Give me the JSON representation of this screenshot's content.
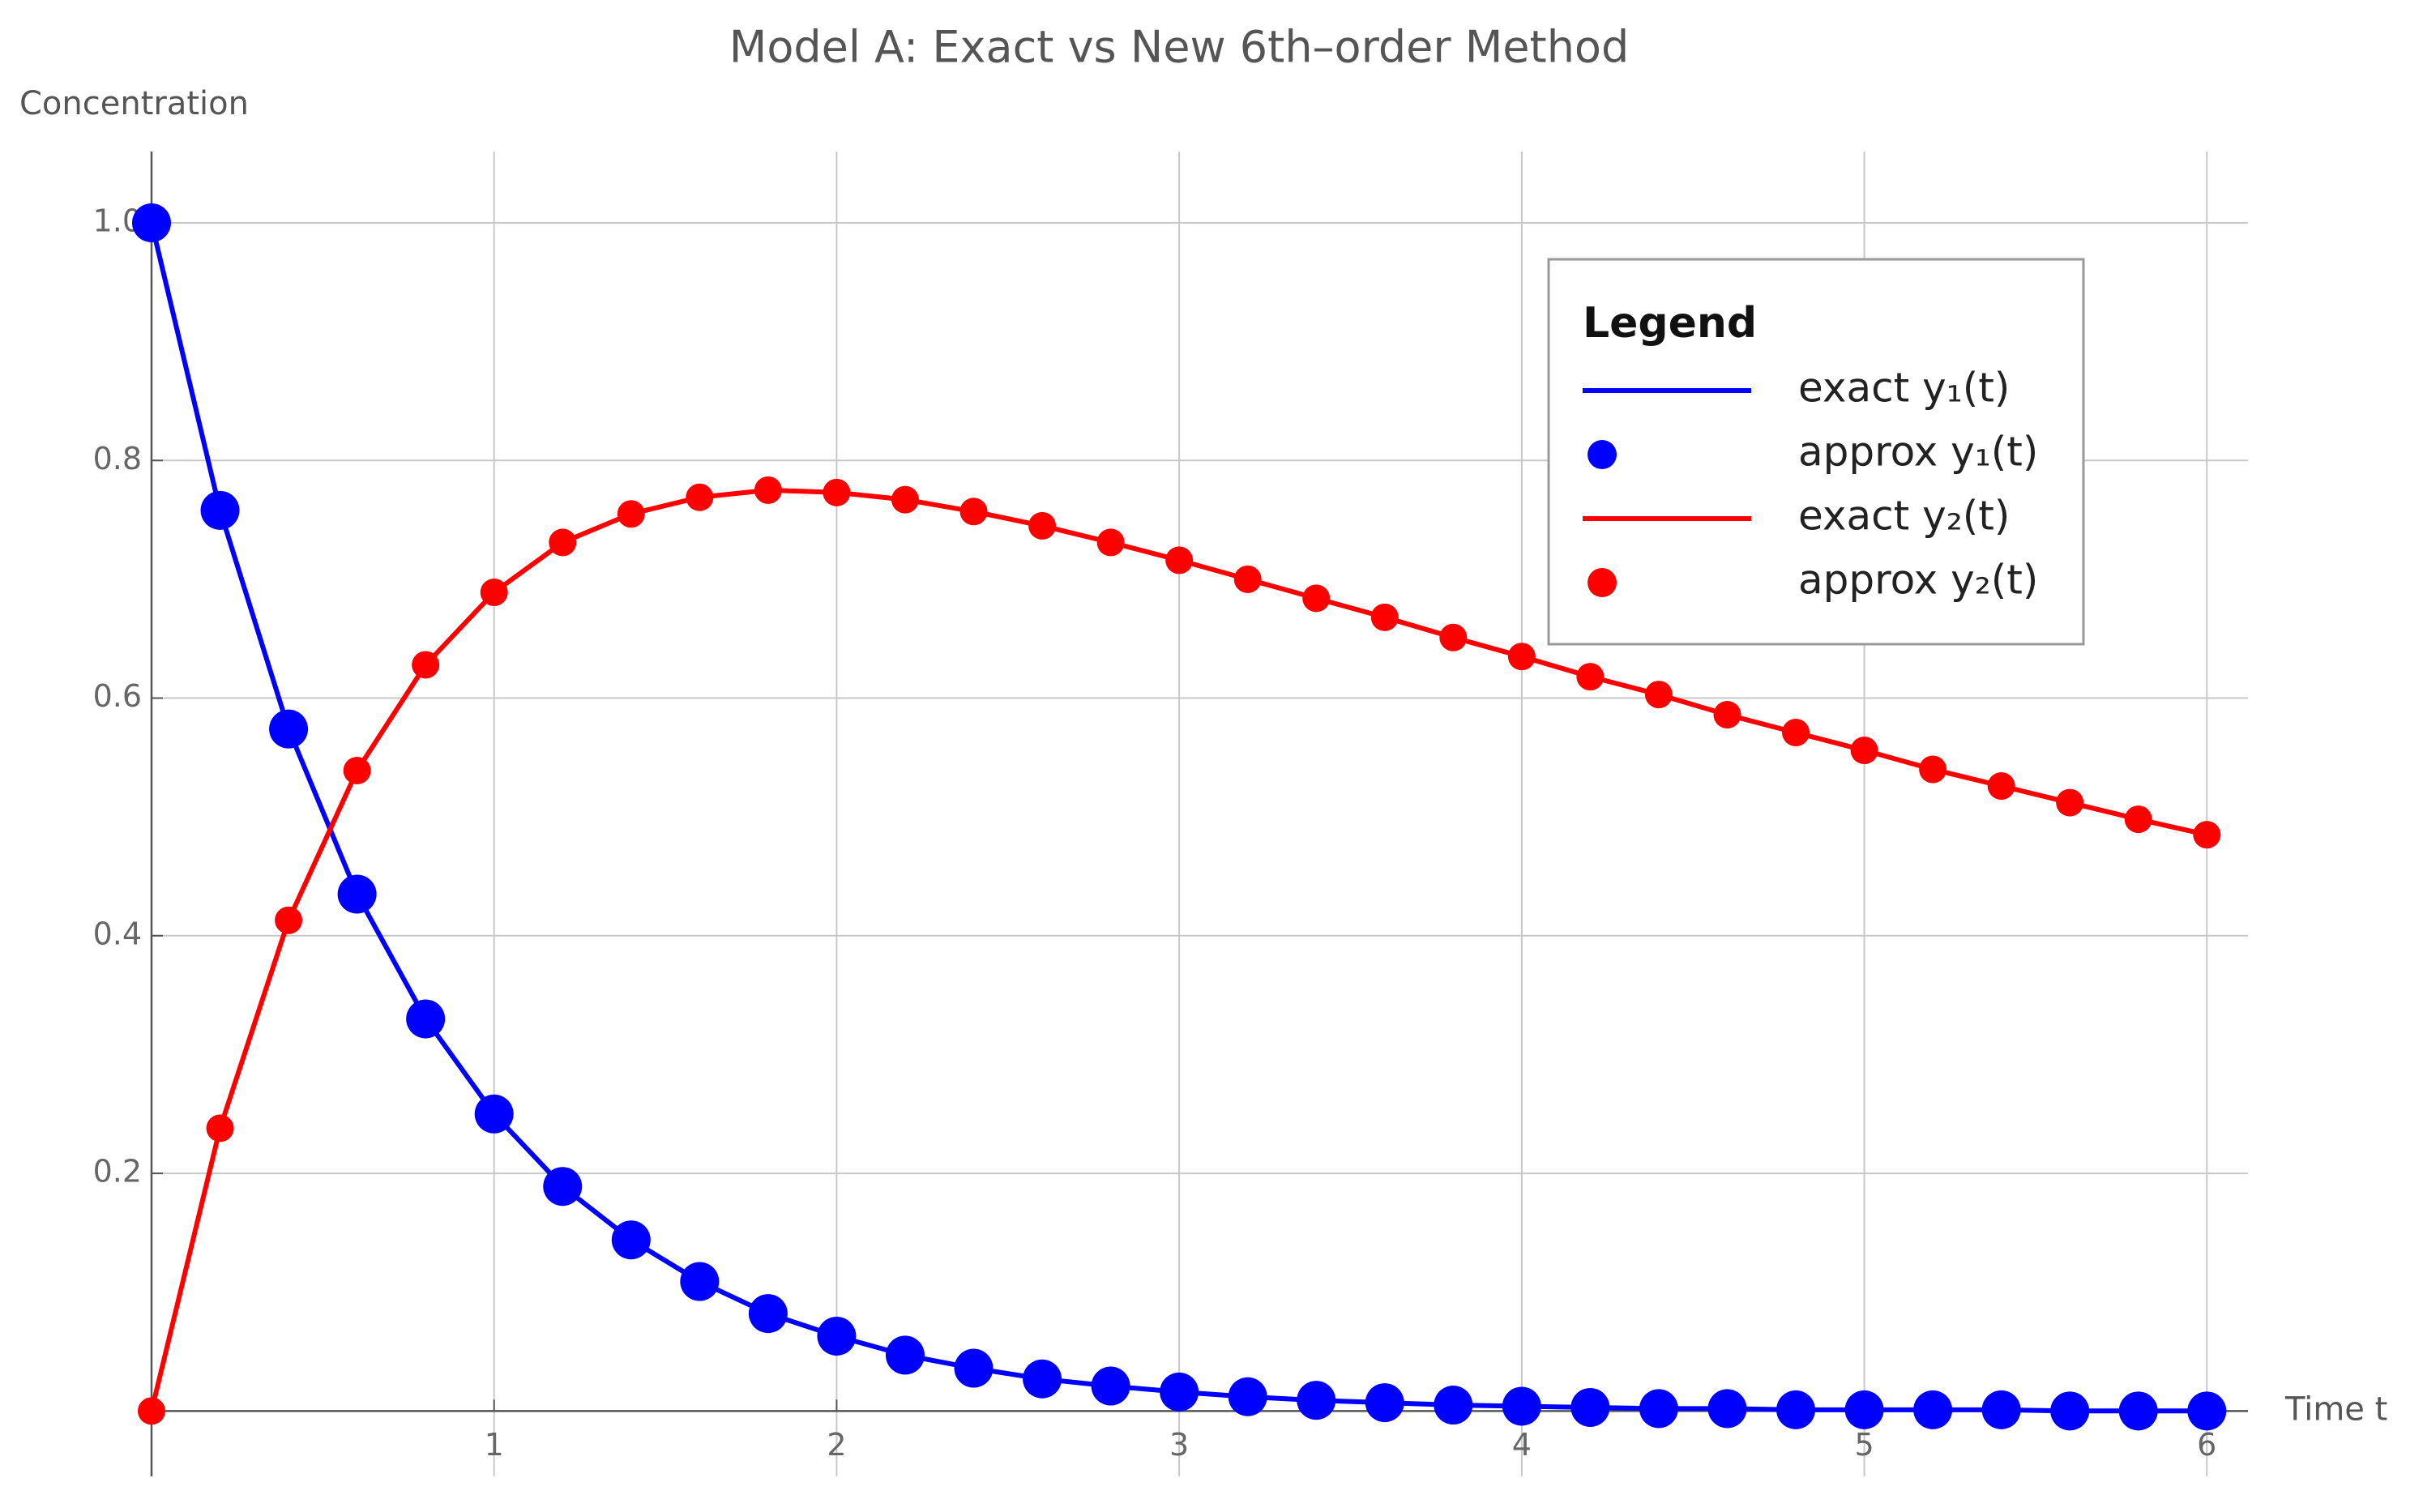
{
  "chart_data": {
    "type": "line",
    "title": "Model A: Exact vs New 6th–order Method",
    "y_label": "Concentration",
    "x_label": "Time t",
    "legend_title": "Legend",
    "legend": "upper right",
    "grid": true,
    "x": [
      0,
      0.2,
      0.4,
      0.6,
      0.8,
      1,
      1.2,
      1.4,
      1.6,
      1.8,
      2,
      2.2,
      2.4,
      2.6,
      2.8,
      3,
      3.2,
      3.4,
      3.6,
      3.8,
      4,
      4.2,
      4.4,
      4.6,
      4.8,
      5,
      5.2,
      5.4,
      5.6,
      5.8,
      6
    ],
    "xlim": [
      0,
      6.12
    ],
    "xticks": [
      1,
      2,
      3,
      4,
      5,
      6
    ],
    "ylim": [
      -0.055,
      1.06
    ],
    "yticks": [
      0.2,
      0.4,
      0.6,
      0.8,
      {
        "value": 1,
        "label": "1.0"
      }
    ],
    "series": [
      {
        "name": "exact y₁(t)",
        "color": "#0000ff",
        "style": "line",
        "values": [
          1,
          0.758,
          0.574,
          0.435,
          0.33,
          0.25,
          0.189,
          0.144,
          0.109,
          0.082,
          0.063,
          0.047,
          0.036,
          0.027,
          0.021,
          0.016,
          0.012,
          0.009,
          0.007,
          0.005,
          0.004,
          0.003,
          0.002,
          0.002,
          0.001,
          0.001,
          0.001,
          0.001,
          0,
          0,
          0
        ]
      },
      {
        "name": "approx y₁(t)",
        "color": "#0000ff",
        "style": "points",
        "values": [
          1,
          0.758,
          0.574,
          0.435,
          0.33,
          0.25,
          0.189,
          0.144,
          0.109,
          0.082,
          0.063,
          0.047,
          0.036,
          0.027,
          0.021,
          0.016,
          0.012,
          0.009,
          0.007,
          0.005,
          0.004,
          0.003,
          0.002,
          0.002,
          0.001,
          0.001,
          0.001,
          0.001,
          0,
          0,
          0
        ]
      },
      {
        "name": "exact y₂(t)",
        "color": "#ff0000",
        "style": "line",
        "values": [
          0,
          0.238,
          0.413,
          0.539,
          0.628,
          0.689,
          0.731,
          0.755,
          0.769,
          0.775,
          0.773,
          0.767,
          0.757,
          0.745,
          0.731,
          0.716,
          0.7,
          0.684,
          0.668,
          0.651,
          0.635,
          0.618,
          0.603,
          0.586,
          0.571,
          0.556,
          0.54,
          0.526,
          0.512,
          0.498,
          0.485
        ]
      },
      {
        "name": "approx y₂(t)",
        "color": "#ff0000",
        "style": "points",
        "values": [
          0,
          0.238,
          0.413,
          0.539,
          0.628,
          0.689,
          0.731,
          0.755,
          0.769,
          0.775,
          0.773,
          0.767,
          0.757,
          0.745,
          0.731,
          0.716,
          0.7,
          0.684,
          0.668,
          0.651,
          0.635,
          0.618,
          0.603,
          0.586,
          0.571,
          0.556,
          0.54,
          0.526,
          0.512,
          0.498,
          0.485
        ]
      }
    ]
  }
}
